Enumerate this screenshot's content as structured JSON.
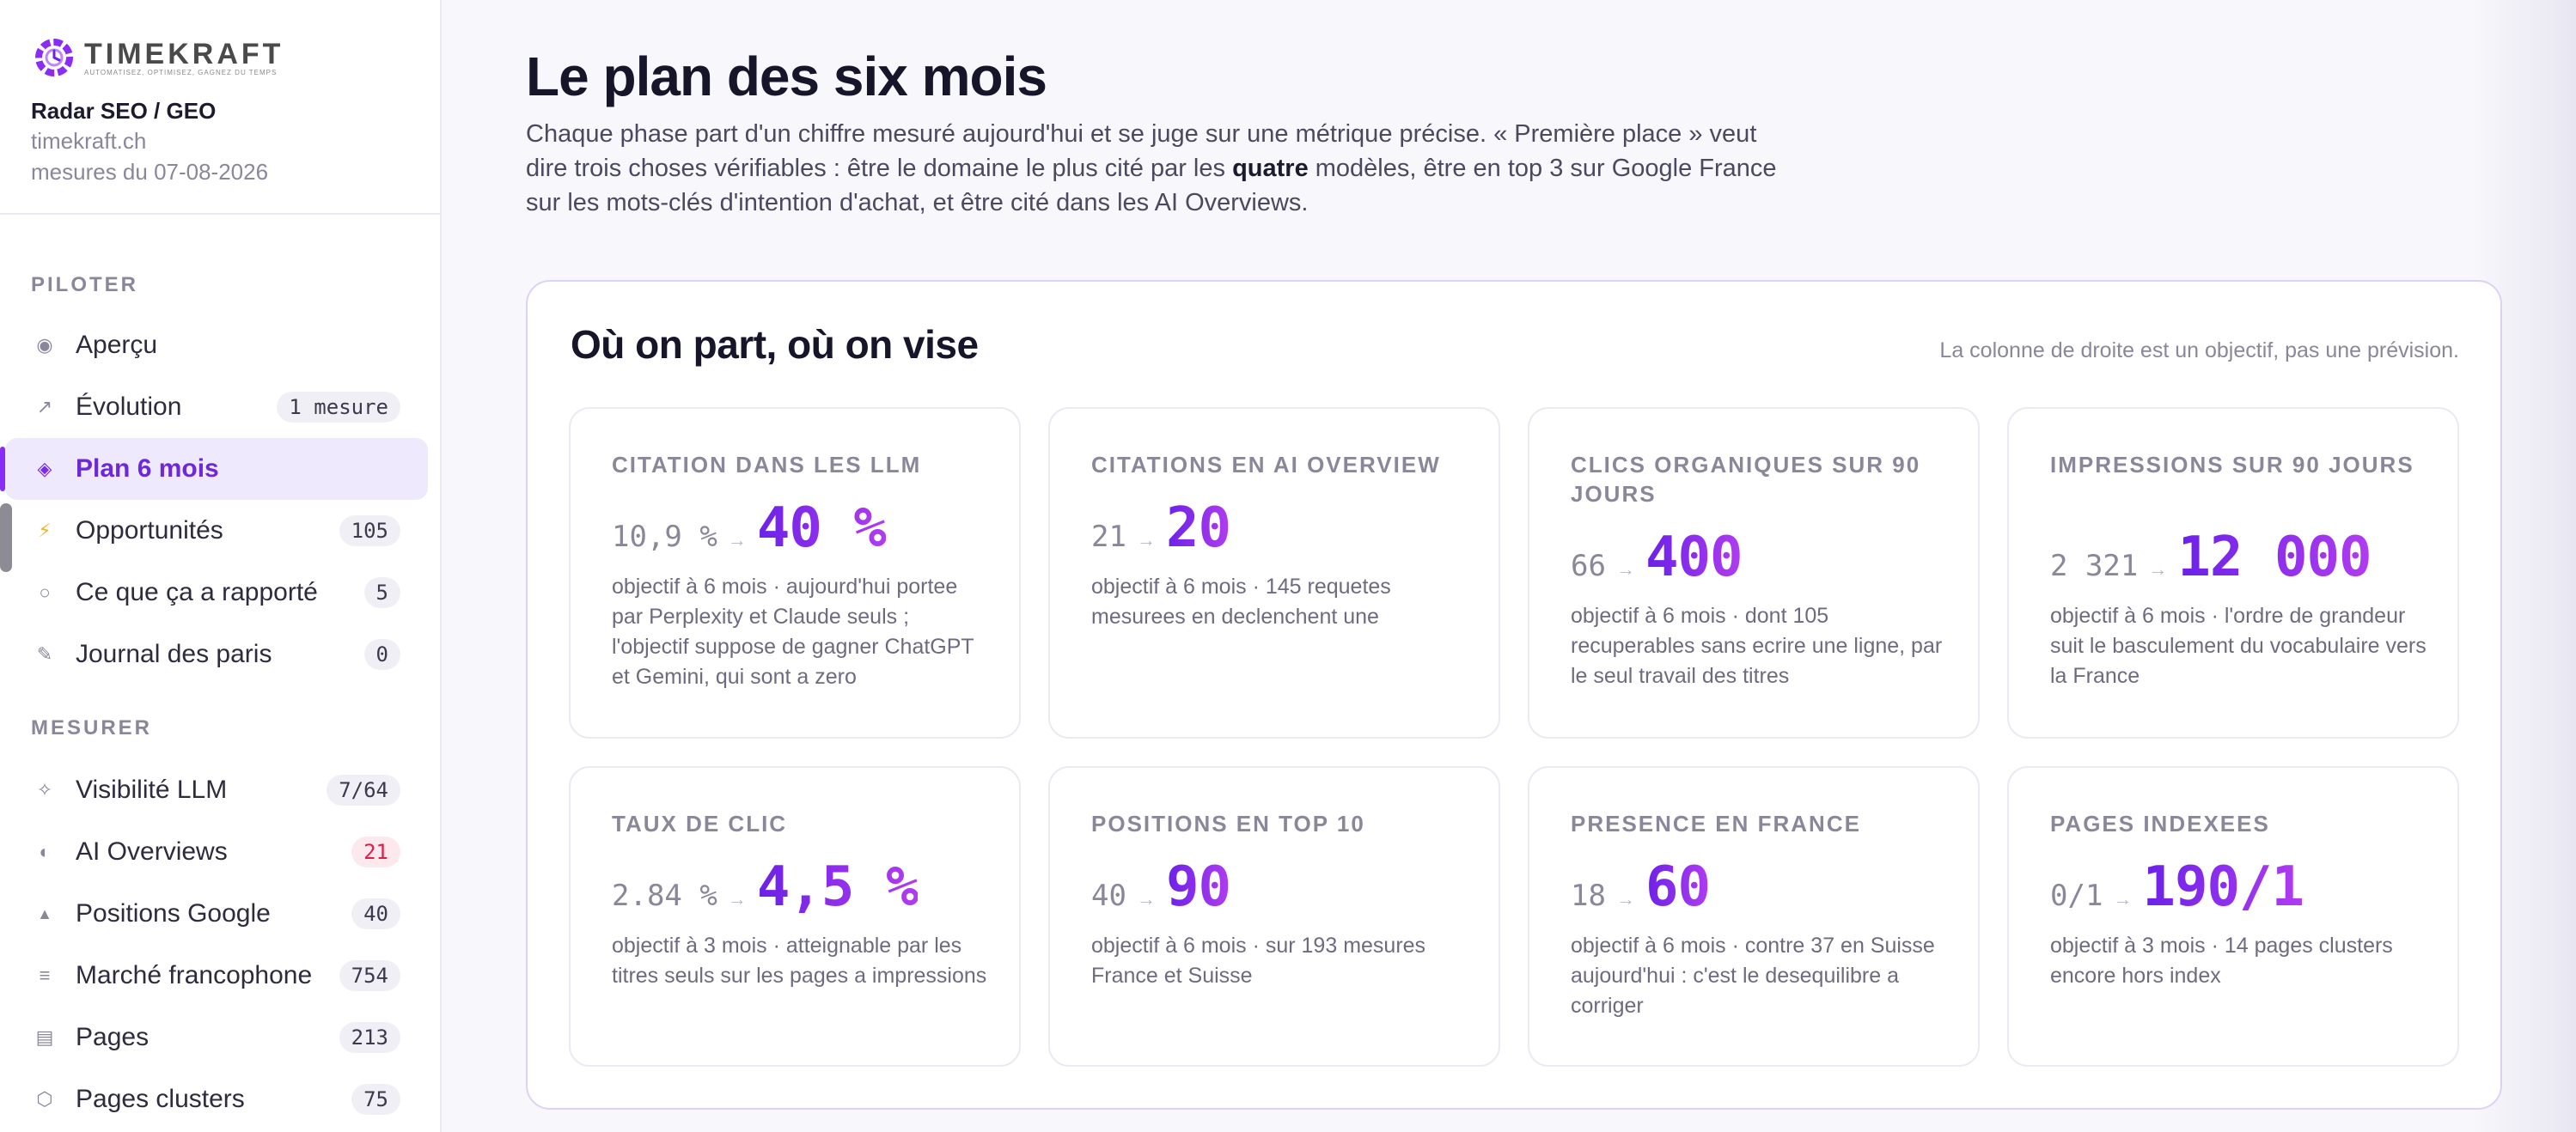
{
  "brand": {
    "name": "TIMEKRAFT",
    "tagline": "AUTOMATISEZ, OPTIMISEZ, GAGNEZ DU TEMPS",
    "colors": {
      "mark": "#8b2cf5",
      "accent": "#7c1ff0"
    }
  },
  "site": {
    "title": "Radar SEO / GEO",
    "domain": "timekraft.ch",
    "date": "mesures du 07-08-2026"
  },
  "sidebar": {
    "sections": [
      {
        "label": "PILOTER",
        "items": [
          {
            "label": "Aperçu",
            "icon": "radio-dot-icon",
            "glyph": "◉",
            "badge": "",
            "active": false
          },
          {
            "label": "Évolution",
            "icon": "trend-arrow-icon",
            "glyph": "↗",
            "badge": "1 mesure",
            "active": false
          },
          {
            "label": "Plan 6 mois",
            "icon": "diamond-icon",
            "glyph": "◈",
            "badge": "",
            "active": true
          },
          {
            "label": "Opportunités",
            "icon": "lightning-icon",
            "glyph": "⚡",
            "badge": "105",
            "active": false
          },
          {
            "label": "Ce que ça a rapporté",
            "icon": "circle-outline-icon",
            "glyph": "○",
            "badge": "5",
            "active": false
          },
          {
            "label": "Journal des paris",
            "icon": "pencil-icon",
            "glyph": "✎",
            "badge": "0",
            "active": false
          }
        ]
      },
      {
        "label": "MESURER",
        "items": [
          {
            "label": "Visibilité LLM",
            "icon": "sparkle-icon",
            "glyph": "✧",
            "badge": "7/64",
            "active": false
          },
          {
            "label": "AI Overviews",
            "icon": "half-circle-icon",
            "glyph": "◐",
            "badge": "21",
            "alert": true,
            "active": false
          },
          {
            "label": "Positions Google",
            "icon": "triangle-icon",
            "glyph": "▲",
            "badge": "40",
            "active": false
          },
          {
            "label": "Marché francophone",
            "icon": "lines-icon",
            "glyph": "≡",
            "badge": "754",
            "active": false
          },
          {
            "label": "Pages",
            "icon": "page-icon",
            "glyph": "▤",
            "badge": "213",
            "active": false
          },
          {
            "label": "Pages clusters",
            "icon": "hexagon-icon",
            "glyph": "⬡",
            "badge": "75",
            "active": false
          }
        ]
      }
    ]
  },
  "main": {
    "title": "Le plan des six mois",
    "intro_before": "Chaque phase part d'un chiffre mesuré aujourd'hui et se juge sur une métrique précise. « Première place » veut dire trois choses vérifiables : être le domaine le plus cité par les ",
    "intro_bold": "quatre",
    "intro_after": " modèles, être en top 3 sur Google France sur les mots-clés d'intention d'achat, et être cité dans les AI Overviews.",
    "panel": {
      "title": "Où on part, où on vise",
      "note": "La colonne de droite est un objectif, pas une prévision.",
      "arrow": "→",
      "cards": [
        {
          "label": "CITATION DANS LES LLM",
          "from": "10,9 %",
          "to": "40 %",
          "desc": "objectif à 6 mois · aujourd'hui portee par Perplexity et Claude seuls ; l'objectif suppose de gagner ChatGPT et Gemini, qui sont a zero"
        },
        {
          "label": "CITATIONS EN AI OVERVIEW",
          "from": "21",
          "to": "20",
          "desc": "objectif à 6 mois · 145 requetes mesurees en declenchent une"
        },
        {
          "label": "CLICS ORGANIQUES SUR 90 JOURS",
          "from": "66",
          "to": "400",
          "desc": "objectif à 6 mois · dont 105 recuperables sans ecrire une ligne, par le seul travail des titres"
        },
        {
          "label": "IMPRESSIONS SUR 90 JOURS",
          "from": "2 321",
          "to": "12 000",
          "desc": "objectif à 6 mois · l'ordre de grandeur suit le basculement du vocabulaire vers la France"
        },
        {
          "label": "TAUX DE CLIC",
          "from": "2.84 %",
          "to": "4,5 %",
          "desc": "objectif à 3 mois · atteignable par les titres seuls sur les pages a impressions"
        },
        {
          "label": "POSITIONS EN TOP 10",
          "from": "40",
          "to": "90",
          "desc": "objectif à 6 mois · sur 193 mesures France et Suisse"
        },
        {
          "label": "PRESENCE EN FRANCE",
          "from": "18",
          "to": "60",
          "desc": "objectif à 6 mois · contre 37 en Suisse aujourd'hui : c'est le desequilibre a corriger"
        },
        {
          "label": "PAGES INDEXEES",
          "from": "0/1",
          "to": "190/1",
          "desc": "objectif à 3 mois · 14 pages clusters encore hors index"
        }
      ]
    }
  }
}
